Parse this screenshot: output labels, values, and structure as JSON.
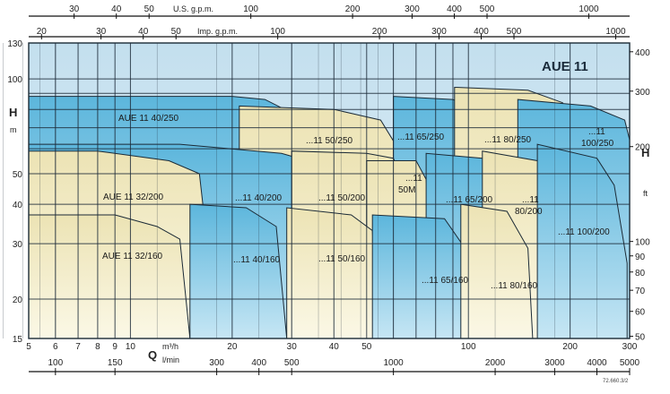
{
  "chart_data": {
    "type": "area",
    "title": "AUE 11",
    "x_axis": {
      "label_symbol": "Q",
      "unit_m3h": "m³/h",
      "unit_lmin": "l/min",
      "scale": "log",
      "range_m3h": [
        5,
        300
      ],
      "ticks_m3h": [
        "5",
        "6",
        "7",
        "8",
        "9",
        "10",
        "20",
        "30",
        "40",
        "50",
        "100",
        "200",
        "300"
      ],
      "ticks_lmin": [
        "100",
        "150",
        "300",
        "400",
        "500",
        "1000",
        "2000",
        "3000",
        "4000",
        "5000"
      ],
      "top_usgpm_label": "U.S. g.p.m.",
      "top_usgpm_ticks": [
        "30",
        "40",
        "50",
        "100",
        "200",
        "300",
        "400",
        "500",
        "1000"
      ],
      "top_impgpm_label": "Imp. g.p.m.",
      "top_impgpm_ticks": [
        "20",
        "30",
        "40",
        "50",
        "100",
        "200",
        "300",
        "400",
        "500",
        "1000"
      ]
    },
    "y_axis": {
      "label": "H",
      "unit_left": "m",
      "unit_right": "ft",
      "scale": "log",
      "range_m": [
        15,
        130
      ],
      "ticks_m": [
        "15",
        "20",
        "30",
        "40",
        "50",
        "100",
        "130"
      ],
      "ticks_ft": [
        "50",
        "60",
        "70",
        "80",
        "90",
        "100",
        "200",
        "300",
        "400"
      ]
    },
    "colors": {
      "cream": "#f5efc7",
      "blue": "#6fbfdf",
      "background": "#c9e4f0",
      "grid": "#1c2a38"
    },
    "series": [
      {
        "name": "AUE 11 40/250",
        "label": "AUE 11 40/250",
        "fill": "blue",
        "points": [
          [
            5,
            88
          ],
          [
            20,
            88
          ],
          [
            25,
            86
          ],
          [
            30,
            78
          ],
          [
            38,
            60
          ]
        ]
      },
      {
        "name": "...11 50/250",
        "label": "...11 50/250",
        "fill": "cream",
        "points": [
          [
            21,
            82
          ],
          [
            40,
            80
          ],
          [
            55,
            74
          ],
          [
            62,
            60
          ]
        ]
      },
      {
        "name": "...11 65/250",
        "label": "...11 65/250",
        "fill": "blue",
        "points": [
          [
            60,
            88
          ],
          [
            90,
            86
          ],
          [
            110,
            78
          ],
          [
            120,
            60
          ]
        ]
      },
      {
        "name": "...11 80/250",
        "label": "...11 80/250",
        "fill": "cream",
        "points": [
          [
            91,
            94
          ],
          [
            150,
            92
          ],
          [
            190,
            84
          ],
          [
            200,
            62
          ]
        ]
      },
      {
        "name": "...11 100/250",
        "label": "...11 100/250",
        "fill": "blue",
        "points": [
          [
            140,
            86
          ],
          [
            230,
            82
          ],
          [
            290,
            74
          ],
          [
            300,
            64
          ]
        ]
      },
      {
        "name": "AUE 11 40/200",
        "label": "...11 40/200",
        "fill": "blue",
        "points": [
          [
            5,
            62
          ],
          [
            14,
            62
          ],
          [
            28,
            58
          ],
          [
            40,
            52
          ],
          [
            42,
            30
          ]
        ]
      },
      {
        "name": "AUE 11 32/200",
        "label": "AUE 11 32/200",
        "fill": "cream",
        "points": [
          [
            5,
            59
          ],
          [
            8,
            59
          ],
          [
            13,
            55
          ],
          [
            16,
            50
          ],
          [
            17,
            28
          ]
        ]
      },
      {
        "name": "...11 50/200",
        "label": "...11 50/200",
        "fill": "cream",
        "points": [
          [
            30,
            59
          ],
          [
            50,
            58
          ],
          [
            60,
            56
          ],
          [
            64,
            48
          ]
        ]
      },
      {
        "name": "...11 50M",
        "label": "...11 50M",
        "fill": "cream",
        "points": [
          [
            50,
            55
          ],
          [
            70,
            55
          ],
          [
            75,
            48
          ],
          [
            76,
            40
          ]
        ]
      },
      {
        "name": "...11 65/200",
        "label": "...11 65/200",
        "fill": "blue",
        "points": [
          [
            75,
            58
          ],
          [
            110,
            56
          ],
          [
            125,
            48
          ],
          [
            130,
            34
          ]
        ]
      },
      {
        "name": "...11 80/200",
        "label": "...11 80/200",
        "fill": "cream",
        "points": [
          [
            110,
            59
          ],
          [
            160,
            55
          ],
          [
            170,
            47
          ],
          [
            172,
            40
          ]
        ]
      },
      {
        "name": "...11 100/200",
        "label": "...11 100/200",
        "fill": "blue",
        "points": [
          [
            160,
            62
          ],
          [
            240,
            56
          ],
          [
            270,
            46
          ],
          [
            295,
            26
          ]
        ]
      },
      {
        "name": "AUE 11 32/160",
        "label": "AUE 11 32/160",
        "fill": "cream",
        "points": [
          [
            5,
            37
          ],
          [
            9,
            37
          ],
          [
            12,
            34
          ],
          [
            14,
            31
          ],
          [
            15,
            15
          ]
        ]
      },
      {
        "name": "...11 40/160",
        "label": "...11 40/160",
        "fill": "blue",
        "points": [
          [
            15,
            40
          ],
          [
            22,
            39
          ],
          [
            27,
            34
          ],
          [
            29,
            15
          ]
        ]
      },
      {
        "name": "...11 50/160",
        "label": "...11 50/160",
        "fill": "cream",
        "points": [
          [
            29,
            39
          ],
          [
            45,
            37
          ],
          [
            52,
            33
          ],
          [
            54,
            15
          ]
        ]
      },
      {
        "name": "...11 65/160",
        "label": "...11 65/160",
        "fill": "blue",
        "points": [
          [
            52,
            37
          ],
          [
            85,
            36
          ],
          [
            100,
            28
          ],
          [
            102,
            15
          ]
        ]
      },
      {
        "name": "...11 80/160",
        "label": "...11 80/160",
        "fill": "cream",
        "points": [
          [
            95,
            40
          ],
          [
            130,
            38
          ],
          [
            150,
            29
          ],
          [
            155,
            15
          ]
        ]
      }
    ],
    "grid": true,
    "footer_code": "72.660.3/2"
  }
}
